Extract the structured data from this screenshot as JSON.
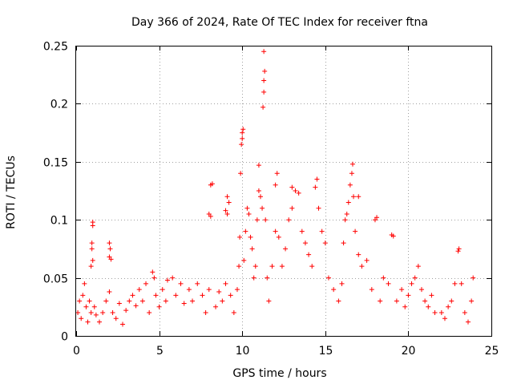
{
  "chart_data": {
    "type": "scatter",
    "title": "Day 366 of 2024, Rate Of TEC Index for receiver ftna",
    "xlabel": "GPS time / hours",
    "ylabel": "ROTI / TECUs",
    "xlim": [
      0,
      25
    ],
    "ylim": [
      0,
      0.25
    ],
    "x_ticks": [
      "0",
      "5",
      "10",
      "15",
      "20",
      "25"
    ],
    "y_ticks": [
      "0",
      "0.05",
      "0.1",
      "0.15",
      "0.2",
      "0.25"
    ],
    "x_tick_values": [
      0,
      5,
      10,
      15,
      20,
      25
    ],
    "y_tick_values": [
      0,
      0.05,
      0.1,
      0.15,
      0.2,
      0.25
    ],
    "grid": true,
    "marker": "+",
    "marker_color": "#ff0000",
    "series": [
      {
        "name": "ROTI",
        "points": [
          [
            0.1,
            0.02
          ],
          [
            0.2,
            0.03
          ],
          [
            0.3,
            0.015
          ],
          [
            0.4,
            0.035
          ],
          [
            0.5,
            0.045
          ],
          [
            0.6,
            0.025
          ],
          [
            0.7,
            0.012
          ],
          [
            0.8,
            0.03
          ],
          [
            0.9,
            0.02
          ],
          [
            1.0,
            0.098
          ],
          [
            1.0,
            0.095
          ],
          [
            0.95,
            0.08
          ],
          [
            0.95,
            0.075
          ],
          [
            1.0,
            0.065
          ],
          [
            0.9,
            0.06
          ],
          [
            1.1,
            0.025
          ],
          [
            1.2,
            0.018
          ],
          [
            1.4,
            0.012
          ],
          [
            1.6,
            0.02
          ],
          [
            1.8,
            0.03
          ],
          [
            2.0,
            0.038
          ],
          [
            2.0,
            0.08
          ],
          [
            2.05,
            0.075
          ],
          [
            2.0,
            0.068
          ],
          [
            2.1,
            0.066
          ],
          [
            2.2,
            0.02
          ],
          [
            2.4,
            0.015
          ],
          [
            2.6,
            0.028
          ],
          [
            2.8,
            0.01
          ],
          [
            3.0,
            0.022
          ],
          [
            3.2,
            0.03
          ],
          [
            3.4,
            0.035
          ],
          [
            3.6,
            0.026
          ],
          [
            3.8,
            0.04
          ],
          [
            4.0,
            0.03
          ],
          [
            4.2,
            0.045
          ],
          [
            4.4,
            0.02
          ],
          [
            4.6,
            0.055
          ],
          [
            4.7,
            0.05
          ],
          [
            4.8,
            0.035
          ],
          [
            5.0,
            0.025
          ],
          [
            5.2,
            0.04
          ],
          [
            5.4,
            0.03
          ],
          [
            5.5,
            0.048
          ],
          [
            5.8,
            0.05
          ],
          [
            6.0,
            0.035
          ],
          [
            6.3,
            0.045
          ],
          [
            6.5,
            0.028
          ],
          [
            6.8,
            0.04
          ],
          [
            7.0,
            0.03
          ],
          [
            7.3,
            0.045
          ],
          [
            7.6,
            0.035
          ],
          [
            7.8,
            0.02
          ],
          [
            8.0,
            0.04
          ],
          [
            8.0,
            0.105
          ],
          [
            8.1,
            0.103
          ],
          [
            8.1,
            0.13
          ],
          [
            8.2,
            0.131
          ],
          [
            8.4,
            0.025
          ],
          [
            8.6,
            0.038
          ],
          [
            8.8,
            0.03
          ],
          [
            9.0,
            0.045
          ],
          [
            9.0,
            0.108
          ],
          [
            9.1,
            0.105
          ],
          [
            9.1,
            0.12
          ],
          [
            9.2,
            0.115
          ],
          [
            9.3,
            0.035
          ],
          [
            9.5,
            0.02
          ],
          [
            9.7,
            0.04
          ],
          [
            9.8,
            0.06
          ],
          [
            9.85,
            0.085
          ],
          [
            9.9,
            0.14
          ],
          [
            9.95,
            0.165
          ],
          [
            10.0,
            0.17
          ],
          [
            10.0,
            0.175
          ],
          [
            10.05,
            0.178
          ],
          [
            10.1,
            0.065
          ],
          [
            10.2,
            0.09
          ],
          [
            10.3,
            0.11
          ],
          [
            10.4,
            0.105
          ],
          [
            10.5,
            0.085
          ],
          [
            10.6,
            0.075
          ],
          [
            10.7,
            0.05
          ],
          [
            10.8,
            0.06
          ],
          [
            10.9,
            0.1
          ],
          [
            11.0,
            0.125
          ],
          [
            11.0,
            0.147
          ],
          [
            11.1,
            0.12
          ],
          [
            11.2,
            0.11
          ],
          [
            11.25,
            0.197
          ],
          [
            11.3,
            0.21
          ],
          [
            11.3,
            0.22
          ],
          [
            11.35,
            0.228
          ],
          [
            11.3,
            0.245
          ],
          [
            11.4,
            0.1
          ],
          [
            11.5,
            0.05
          ],
          [
            11.6,
            0.03
          ],
          [
            11.8,
            0.06
          ],
          [
            12.0,
            0.09
          ],
          [
            12.0,
            0.13
          ],
          [
            12.1,
            0.14
          ],
          [
            12.2,
            0.085
          ],
          [
            12.4,
            0.06
          ],
          [
            12.6,
            0.075
          ],
          [
            12.8,
            0.1
          ],
          [
            13.0,
            0.11
          ],
          [
            13.0,
            0.128
          ],
          [
            13.2,
            0.125
          ],
          [
            13.4,
            0.123
          ],
          [
            13.6,
            0.09
          ],
          [
            13.8,
            0.08
          ],
          [
            14.0,
            0.07
          ],
          [
            14.2,
            0.06
          ],
          [
            14.4,
            0.128
          ],
          [
            14.5,
            0.135
          ],
          [
            14.6,
            0.11
          ],
          [
            14.8,
            0.09
          ],
          [
            15.0,
            0.08
          ],
          [
            15.2,
            0.05
          ],
          [
            15.5,
            0.04
          ],
          [
            15.8,
            0.03
          ],
          [
            16.0,
            0.045
          ],
          [
            16.1,
            0.08
          ],
          [
            16.2,
            0.1
          ],
          [
            16.3,
            0.105
          ],
          [
            16.4,
            0.115
          ],
          [
            16.5,
            0.13
          ],
          [
            16.6,
            0.14
          ],
          [
            16.65,
            0.148
          ],
          [
            16.7,
            0.12
          ],
          [
            16.8,
            0.09
          ],
          [
            17.0,
            0.12
          ],
          [
            17.0,
            0.07
          ],
          [
            17.2,
            0.06
          ],
          [
            17.5,
            0.065
          ],
          [
            17.8,
            0.04
          ],
          [
            18.0,
            0.1
          ],
          [
            18.1,
            0.102
          ],
          [
            18.3,
            0.03
          ],
          [
            18.5,
            0.05
          ],
          [
            18.8,
            0.045
          ],
          [
            19.0,
            0.087
          ],
          [
            19.1,
            0.086
          ],
          [
            19.3,
            0.03
          ],
          [
            19.6,
            0.04
          ],
          [
            19.8,
            0.025
          ],
          [
            20.0,
            0.035
          ],
          [
            20.2,
            0.045
          ],
          [
            20.4,
            0.05
          ],
          [
            20.6,
            0.06
          ],
          [
            20.8,
            0.04
          ],
          [
            21.0,
            0.03
          ],
          [
            21.2,
            0.025
          ],
          [
            21.4,
            0.035
          ],
          [
            21.6,
            0.02
          ],
          [
            22.0,
            0.02
          ],
          [
            22.2,
            0.015
          ],
          [
            22.4,
            0.025
          ],
          [
            22.6,
            0.03
          ],
          [
            22.8,
            0.045
          ],
          [
            23.0,
            0.073
          ],
          [
            23.05,
            0.075
          ],
          [
            23.2,
            0.045
          ],
          [
            23.4,
            0.02
          ],
          [
            23.6,
            0.012
          ],
          [
            23.8,
            0.03
          ],
          [
            23.9,
            0.05
          ]
        ]
      }
    ]
  }
}
